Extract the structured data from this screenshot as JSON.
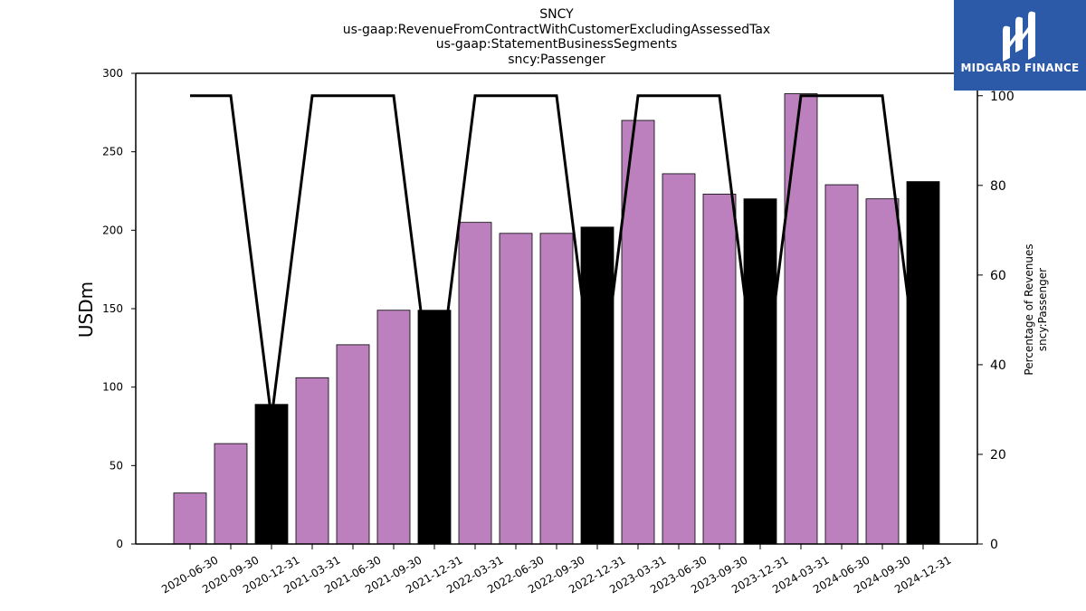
{
  "chart_data": {
    "type": "bar",
    "title_lines": [
      "SNCY",
      "us-gaap:RevenueFromContractWithCustomerExcludingAssessedTax",
      "us-gaap:StatementBusinessSegments",
      "sncy:Passenger"
    ],
    "ylabel": "USDm",
    "ylabel_right_lines": [
      "Percentage of Revenues",
      "sncy:Passenger"
    ],
    "ylim": [
      0,
      300
    ],
    "ylim_right": [
      0,
      105
    ],
    "yticks": [
      0,
      50,
      100,
      150,
      200,
      250,
      300
    ],
    "yticks_right": [
      0,
      20,
      40,
      60,
      80,
      100
    ],
    "categories": [
      "2020-06-30",
      "2020-09-30",
      "2020-12-31",
      "2021-03-31",
      "2021-06-30",
      "2021-09-30",
      "2021-12-31",
      "2022-03-31",
      "2022-06-30",
      "2022-09-30",
      "2022-12-31",
      "2023-03-31",
      "2023-06-30",
      "2023-09-30",
      "2023-12-31",
      "2024-03-31",
      "2024-06-30",
      "2024-09-30",
      "2024-12-31"
    ],
    "values": [
      32.5,
      64,
      89,
      106,
      127,
      149,
      149,
      205,
      198,
      198,
      202,
      270,
      236,
      223,
      220,
      287,
      229,
      220,
      231
    ],
    "bar_highlight": [
      false,
      false,
      true,
      false,
      false,
      false,
      true,
      false,
      false,
      false,
      true,
      false,
      false,
      false,
      true,
      false,
      false,
      false,
      true
    ],
    "percentages": [
      100,
      100,
      28,
      100,
      100,
      100,
      28,
      100,
      100,
      100,
      28,
      100,
      100,
      100,
      28,
      100,
      100,
      100,
      28
    ],
    "colors": {
      "bar": "#bb80bd",
      "bar_highlight": "#000000",
      "line": "#000000"
    }
  },
  "logo": {
    "text": "MIDGARD FINANCE",
    "background": "#2c5aa8"
  }
}
